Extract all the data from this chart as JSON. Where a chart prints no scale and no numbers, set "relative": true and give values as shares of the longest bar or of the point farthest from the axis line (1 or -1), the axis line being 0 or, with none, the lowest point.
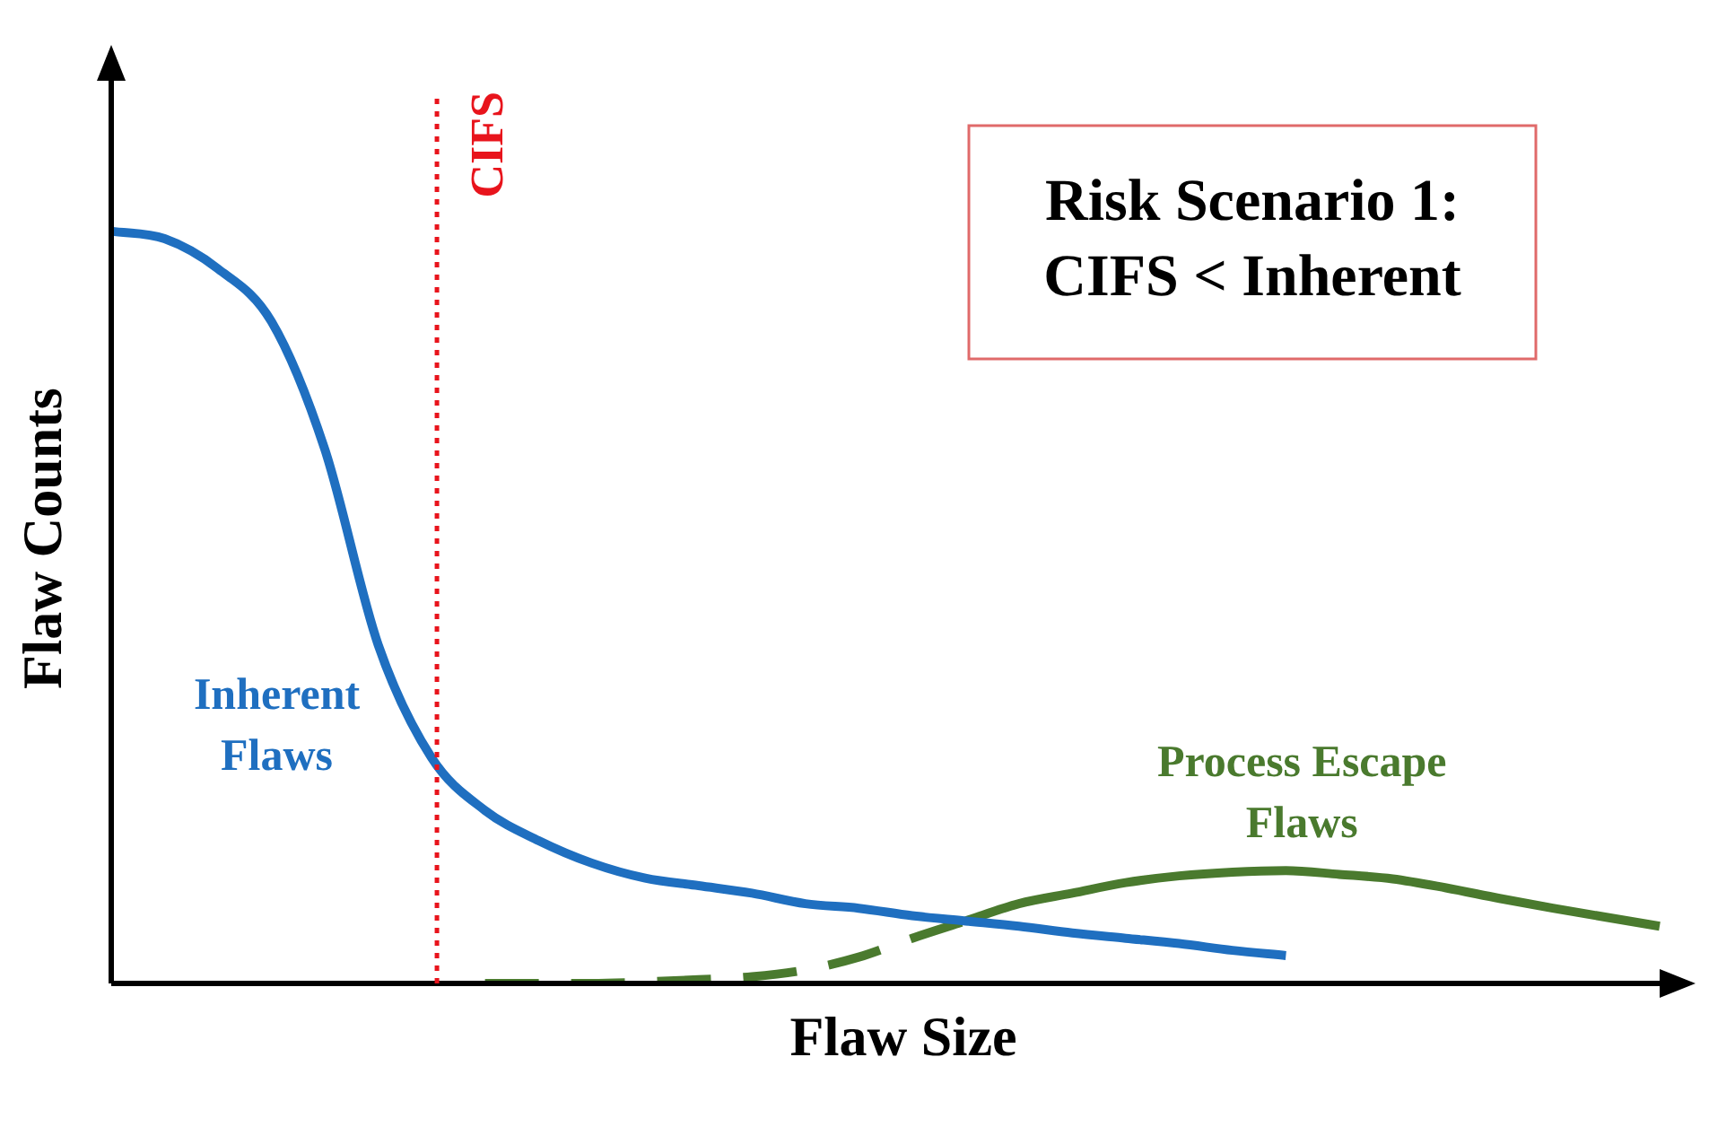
{
  "chart_data": {
    "type": "line",
    "relative": true,
    "xlabel": "Flaw Size",
    "ylabel": "Flaw Counts",
    "categories": [
      null,
      null,
      null,
      null,
      null,
      null,
      null,
      null,
      null,
      null,
      null,
      null,
      null,
      null,
      null,
      null,
      null,
      null,
      null,
      null,
      null,
      null,
      null,
      null,
      null,
      null,
      null,
      null,
      null,
      null
    ],
    "series": [
      {
        "name": "Inherent Flaws",
        "color": "#1f6fc0",
        "line_style": "solid",
        "values": [
          1.0,
          0.99,
          0.95,
          0.88,
          0.71,
          0.45,
          0.3,
          0.23,
          0.19,
          0.16,
          0.14,
          0.13,
          0.12,
          0.106,
          0.1,
          0.09,
          0.083,
          0.076,
          0.067,
          0.06,
          0.053,
          0.044,
          0.037,
          null,
          null,
          null,
          null,
          null,
          null,
          null
        ]
      },
      {
        "color": "#4a7a2e",
        "line_style": "dashed",
        "values": [
          null,
          null,
          null,
          null,
          null,
          null,
          null,
          0,
          0,
          0,
          0.002,
          0.005,
          0.009,
          0.018,
          0.035,
          0.06,
          0.083,
          null,
          null,
          null,
          null,
          null,
          null,
          null,
          null,
          null,
          null,
          null,
          null,
          null
        ]
      },
      {
        "name": "Process Escape Flaws",
        "color": "#4a7a2e",
        "line_style": "solid",
        "values": [
          null,
          null,
          null,
          null,
          null,
          null,
          null,
          null,
          null,
          null,
          null,
          null,
          null,
          null,
          null,
          null,
          0.083,
          0.106,
          0.12,
          0.134,
          0.143,
          0.148,
          0.15,
          0.145,
          0.139,
          0.127,
          0.113,
          0.1,
          0.088,
          0.076
        ]
      }
    ],
    "annotations": [
      "CIFS",
      "Risk Scenario 1: CIFS < Inherent"
    ],
    "legend": false,
    "grid": false,
    "marker": "none"
  }
}
